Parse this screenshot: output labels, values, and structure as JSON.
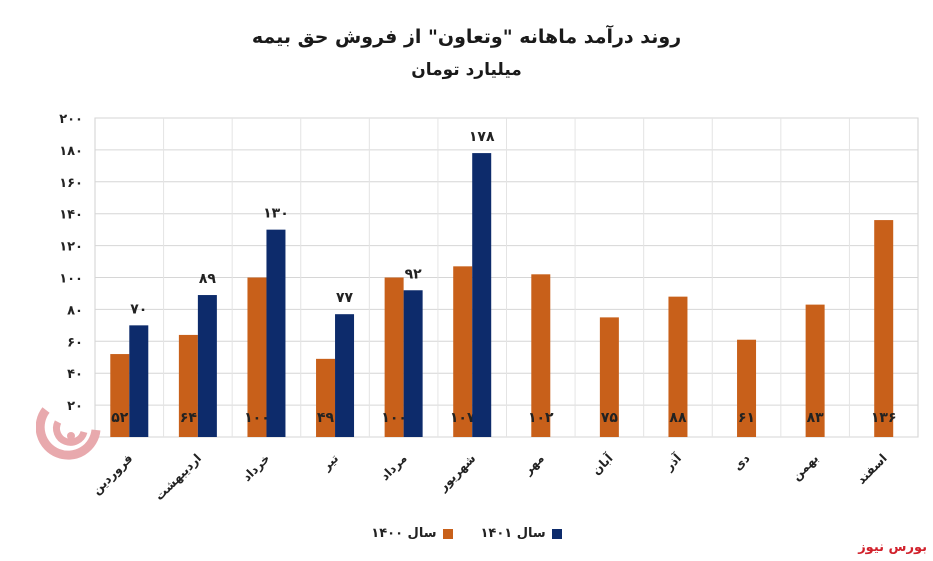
{
  "chart_data": {
    "type": "bar",
    "title": "روند درآمد ماهانه \"وتعاون\" از فروش حق بیمه",
    "subtitle": "میلیارد تومان",
    "categories": [
      "فروردین",
      "اردیبهشت",
      "خرداد",
      "تیر",
      "مرداد",
      "شهریور",
      "مهر",
      "آبان",
      "آذر",
      "دی",
      "بهمن",
      "اسفند"
    ],
    "series": [
      {
        "name": "سال ۱۴۰۰",
        "color": "#c8601a",
        "values": [
          52,
          64,
          100,
          49,
          100,
          107,
          102,
          75,
          88,
          61,
          83,
          136
        ],
        "labels": [
          "۵۲",
          "۶۴",
          "۱۰۰",
          "۴۹",
          "۱۰۰",
          "۱۰۷",
          "۱۰۲",
          "۷۵",
          "۸۸",
          "۶۱",
          "۸۳",
          "۱۳۶"
        ]
      },
      {
        "name": "سال ۱۴۰۱",
        "color": "#0d2b6b",
        "values": [
          70,
          89,
          130,
          77,
          92,
          178,
          null,
          null,
          null,
          null,
          null,
          null
        ],
        "labels": [
          "۷۰",
          "۸۹",
          "۱۳۰",
          "۷۷",
          "۹۲",
          "۱۷۸",
          "",
          "",
          "",
          "",
          "",
          ""
        ]
      }
    ],
    "yticks": [
      0,
      20,
      40,
      60,
      80,
      100,
      120,
      140,
      160,
      180,
      200
    ],
    "ytick_labels": [
      "۰",
      "۲۰",
      "۴۰",
      "۶۰",
      "۸۰",
      "۱۰۰",
      "۱۲۰",
      "۱۴۰",
      "۱۶۰",
      "۱۸۰",
      "۲۰۰"
    ],
    "ylim": [
      0,
      200
    ],
    "grid": true,
    "legend_position": "bottom"
  },
  "source": "بورس نیوز",
  "logo_text": "بورس نیوز"
}
